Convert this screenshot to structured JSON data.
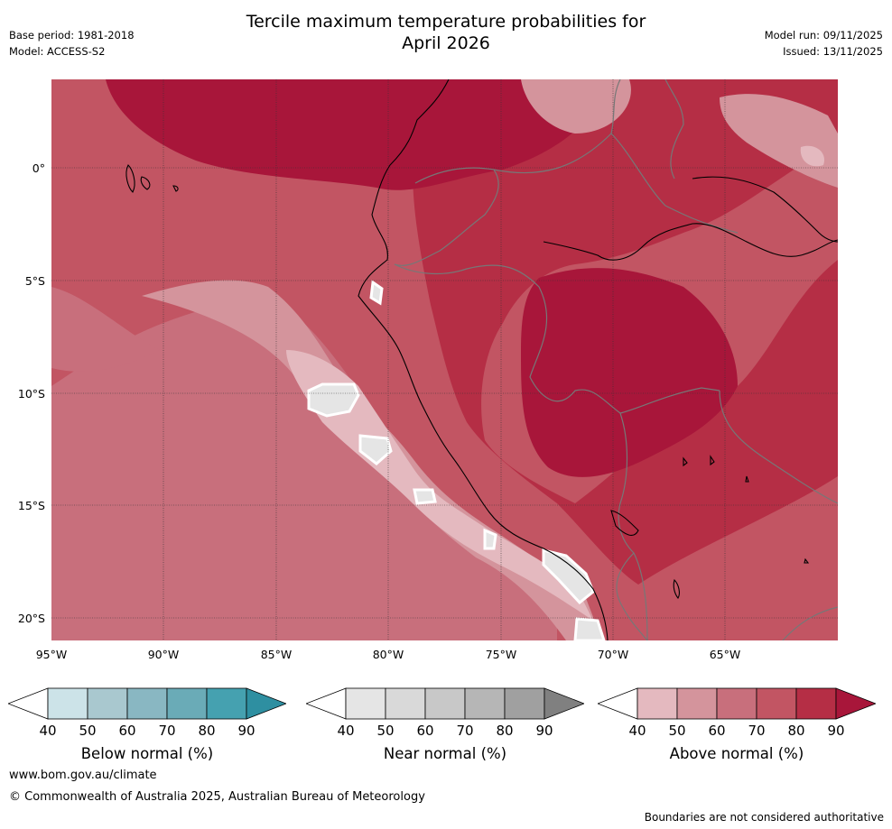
{
  "header": {
    "title_line1": "Tercile maximum temperature probabilities for",
    "title_line2": "April 2026",
    "base_period": "Base period: 1981-2018",
    "model": "Model: ACCESS-S2",
    "model_run": "Model run: 09/11/2025",
    "issued": "Issued: 13/11/2025"
  },
  "map": {
    "lat_labels": [
      "0°",
      "5°S",
      "10°S",
      "15°S",
      "20°S"
    ],
    "lon_labels": [
      "95°W",
      "90°W",
      "85°W",
      "80°W",
      "75°W",
      "70°W",
      "65°W"
    ]
  },
  "colorbars": [
    {
      "title": "Below normal (%)",
      "ticks": [
        "40",
        "50",
        "60",
        "70",
        "80",
        "90"
      ],
      "colors": [
        "#ffffff",
        "#cce3e8",
        "#a9c8cf",
        "#89b7c2",
        "#6aabb7",
        "#45a1b0",
        "#2e8fa1"
      ]
    },
    {
      "title": "Near normal (%)",
      "ticks": [
        "40",
        "50",
        "60",
        "70",
        "80",
        "90"
      ],
      "colors": [
        "#ffffff",
        "#e5e5e5",
        "#d9d9d9",
        "#c8c8c8",
        "#b6b6b6",
        "#a0a0a0",
        "#808080"
      ]
    },
    {
      "title": "Above normal (%)",
      "ticks": [
        "40",
        "50",
        "60",
        "70",
        "80",
        "90"
      ],
      "colors": [
        "#ffffff",
        "#e4b9bf",
        "#d4949c",
        "#c86f7c",
        "#c25563",
        "#b52e45",
        "#a8163a"
      ]
    }
  ],
  "footer": {
    "website": "www.bom.gov.au/climate",
    "copyright": "© Commonwealth of Australia 2025, Australian Bureau of Meteorology",
    "disclaimer": "Boundaries are not considered authoritative"
  }
}
